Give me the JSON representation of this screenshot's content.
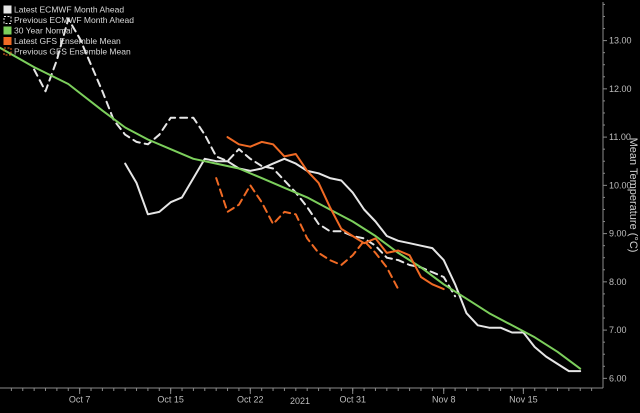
{
  "colors": {
    "background": "#000000",
    "axis": "#8a8a8a",
    "grid": "#2e2e2e",
    "tick_text": "#bdbdbd",
    "legend_text": "#d8d8d8"
  },
  "chart_data": {
    "type": "line",
    "title": "",
    "xlabel": "2021",
    "ylabel": "Mean Temperature (°C)",
    "x_ticks": [
      "Oct 7",
      "Oct 15",
      "Oct 22",
      "Oct 31",
      "Nov 8",
      "Nov 15"
    ],
    "x_tick_days": [
      7,
      15,
      22,
      31,
      39,
      46
    ],
    "xlim_days": [
      0,
      53
    ],
    "y_ticks": [
      "6.00",
      "7.00",
      "8.00",
      "9.00",
      "10.00",
      "11.00",
      "12.00",
      "13.00"
    ],
    "ylim": [
      5.8,
      13.8
    ],
    "grid": false,
    "legend_position": "top-left",
    "series": [
      {
        "name": "Latest ECMWF Month Ahead",
        "color": "#e6e6e6",
        "dashed": false,
        "points": [
          [
            11,
            10.45
          ],
          [
            12,
            10.05
          ],
          [
            13,
            9.4
          ],
          [
            14,
            9.45
          ],
          [
            15,
            9.65
          ],
          [
            16,
            9.75
          ],
          [
            17,
            10.15
          ],
          [
            18,
            10.55
          ],
          [
            19,
            10.5
          ],
          [
            20,
            10.5
          ],
          [
            21,
            10.35
          ],
          [
            22,
            10.3
          ],
          [
            23,
            10.35
          ],
          [
            24,
            10.45
          ],
          [
            25,
            10.55
          ],
          [
            26,
            10.45
          ],
          [
            27,
            10.3
          ],
          [
            28,
            10.25
          ],
          [
            29,
            10.15
          ],
          [
            30,
            10.1
          ],
          [
            31,
            9.85
          ],
          [
            32,
            9.5
          ],
          [
            33,
            9.25
          ],
          [
            34,
            8.95
          ],
          [
            35,
            8.85
          ],
          [
            36,
            8.8
          ],
          [
            37,
            8.75
          ],
          [
            38,
            8.7
          ],
          [
            39,
            8.45
          ],
          [
            40,
            7.95
          ],
          [
            41,
            7.35
          ],
          [
            42,
            7.1
          ],
          [
            43,
            7.05
          ],
          [
            44,
            7.05
          ],
          [
            45,
            6.95
          ],
          [
            46,
            6.95
          ],
          [
            47,
            6.65
          ],
          [
            48,
            6.45
          ],
          [
            49,
            6.3
          ],
          [
            50,
            6.15
          ],
          [
            51,
            6.15
          ]
        ]
      },
      {
        "name": "Previous ECMWF Month Ahead",
        "color": "#e6e6e6",
        "dashed": true,
        "points": [
          [
            3,
            12.4
          ],
          [
            4,
            11.95
          ],
          [
            5,
            12.6
          ],
          [
            6,
            13.45
          ],
          [
            7,
            13.05
          ],
          [
            8,
            12.5
          ],
          [
            9,
            11.95
          ],
          [
            10,
            11.35
          ],
          [
            11,
            11.05
          ],
          [
            12,
            10.9
          ],
          [
            13,
            10.85
          ],
          [
            14,
            11.05
          ],
          [
            15,
            11.4
          ],
          [
            16,
            11.4
          ],
          [
            17,
            11.4
          ],
          [
            18,
            11.05
          ],
          [
            19,
            10.6
          ],
          [
            20,
            10.5
          ],
          [
            21,
            10.75
          ],
          [
            22,
            10.55
          ],
          [
            23,
            10.4
          ],
          [
            24,
            10.35
          ],
          [
            25,
            10.1
          ],
          [
            26,
            9.85
          ],
          [
            27,
            9.55
          ],
          [
            28,
            9.2
          ],
          [
            29,
            9.05
          ],
          [
            30,
            9.05
          ],
          [
            31,
            8.95
          ],
          [
            32,
            8.9
          ],
          [
            33,
            8.75
          ],
          [
            34,
            8.5
          ],
          [
            35,
            8.45
          ],
          [
            36,
            8.35
          ],
          [
            37,
            8.3
          ],
          [
            38,
            8.2
          ],
          [
            39,
            8.1
          ],
          [
            40,
            7.7
          ]
        ]
      },
      {
        "name": "30 Year Normal",
        "color": "#7ccf5c",
        "dashed": false,
        "points": [
          [
            0,
            12.85
          ],
          [
            3,
            12.45
          ],
          [
            6,
            12.1
          ],
          [
            9,
            11.55
          ],
          [
            11,
            11.2
          ],
          [
            13,
            10.95
          ],
          [
            15,
            10.75
          ],
          [
            17,
            10.55
          ],
          [
            19,
            10.45
          ],
          [
            21,
            10.35
          ],
          [
            23,
            10.15
          ],
          [
            25,
            9.95
          ],
          [
            27,
            9.75
          ],
          [
            29,
            9.5
          ],
          [
            31,
            9.25
          ],
          [
            33,
            8.95
          ],
          [
            35,
            8.6
          ],
          [
            37,
            8.3
          ],
          [
            39,
            7.95
          ],
          [
            41,
            7.65
          ],
          [
            43,
            7.35
          ],
          [
            45,
            7.1
          ],
          [
            47,
            6.85
          ],
          [
            49,
            6.55
          ],
          [
            51,
            6.2
          ]
        ]
      },
      {
        "name": "Latest GFS Ensemble Mean",
        "color": "#f06a24",
        "dashed": false,
        "points": [
          [
            20,
            11.0
          ],
          [
            21,
            10.85
          ],
          [
            22,
            10.8
          ],
          [
            23,
            10.9
          ],
          [
            24,
            10.85
          ],
          [
            25,
            10.6
          ],
          [
            26,
            10.65
          ],
          [
            27,
            10.3
          ],
          [
            28,
            10.05
          ],
          [
            29,
            9.55
          ],
          [
            30,
            9.1
          ],
          [
            31,
            8.95
          ],
          [
            32,
            8.8
          ],
          [
            33,
            8.9
          ],
          [
            34,
            8.6
          ],
          [
            35,
            8.65
          ],
          [
            36,
            8.55
          ],
          [
            37,
            8.1
          ],
          [
            38,
            7.95
          ],
          [
            39,
            7.85
          ]
        ]
      },
      {
        "name": "Previous GFS Ensemble Mean",
        "color": "#f06a24",
        "dashed": true,
        "points": [
          [
            19,
            10.15
          ],
          [
            20,
            9.45
          ],
          [
            21,
            9.6
          ],
          [
            22,
            10.0
          ],
          [
            23,
            9.65
          ],
          [
            24,
            9.2
          ],
          [
            25,
            9.45
          ],
          [
            26,
            9.4
          ],
          [
            27,
            8.9
          ],
          [
            28,
            8.6
          ],
          [
            29,
            8.45
          ],
          [
            30,
            8.35
          ],
          [
            31,
            8.55
          ],
          [
            32,
            8.85
          ],
          [
            33,
            8.6
          ],
          [
            34,
            8.3
          ],
          [
            35,
            7.85
          ]
        ]
      }
    ]
  }
}
